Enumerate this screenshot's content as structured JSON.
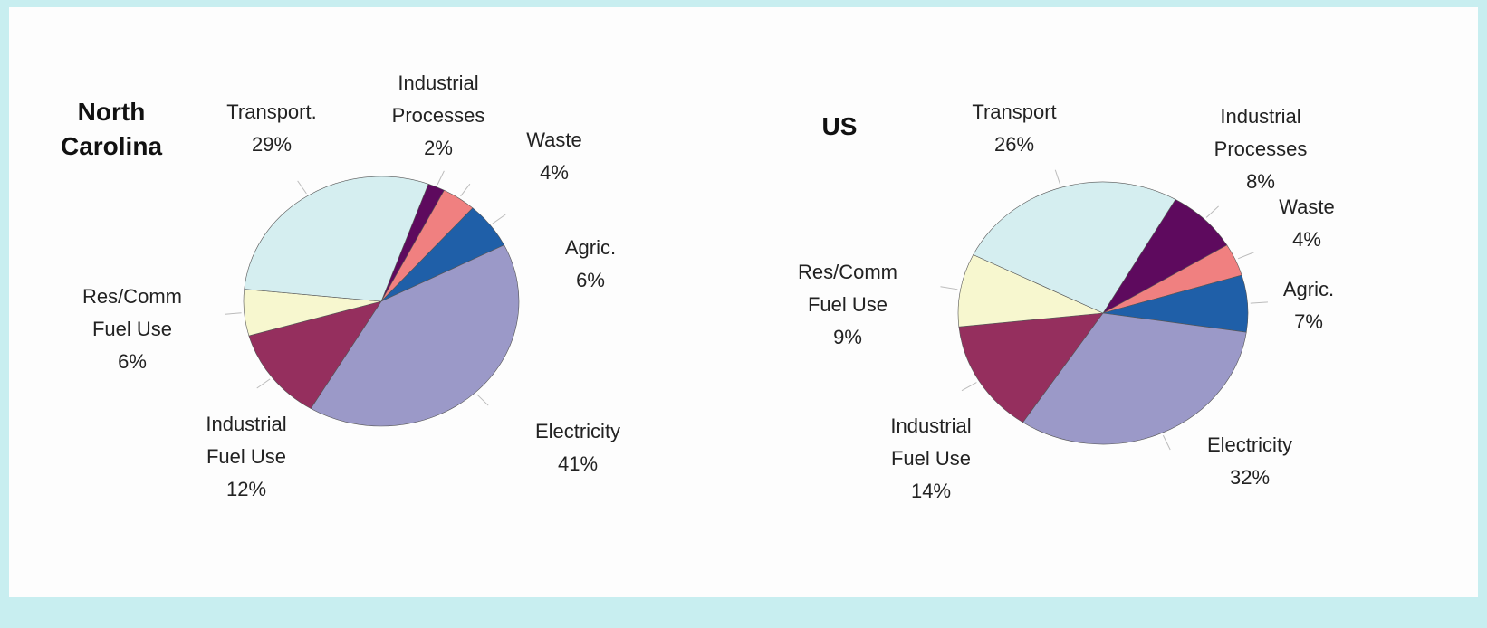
{
  "chart_data": [
    {
      "type": "pie",
      "title": "North\nCarolina",
      "categories": [
        "Industrial\nProcesses",
        "Waste",
        "Agric.",
        "Electricity",
        "Industrial\nFuel Use",
        "Res/Comm\nFuel Use",
        "Transport."
      ],
      "values": [
        2,
        4,
        6,
        41,
        12,
        6,
        29
      ],
      "value_labels": [
        "2%",
        "4%",
        "6%",
        "41%",
        "12%",
        "6%",
        "29%"
      ],
      "colors": [
        "#5e0a5e",
        "#f08080",
        "#1f5fa8",
        "#9b99c8",
        "#952f5e",
        "#f7f7cf",
        "#d5eef0"
      ]
    },
    {
      "type": "pie",
      "title": "US",
      "categories": [
        "Industrial\nProcesses",
        "Waste",
        "Agric.",
        "Electricity",
        "Industrial\nFuel Use",
        "Res/Comm\nFuel Use",
        "Transport"
      ],
      "values": [
        8,
        4,
        7,
        32,
        14,
        9,
        26
      ],
      "value_labels": [
        "8%",
        "4%",
        "7%",
        "32%",
        "14%",
        "9%",
        "26%"
      ],
      "colors": [
        "#5e0a5e",
        "#f08080",
        "#1f5fa8",
        "#9b99c8",
        "#952f5e",
        "#f7f7cf",
        "#d5eef0"
      ]
    }
  ]
}
